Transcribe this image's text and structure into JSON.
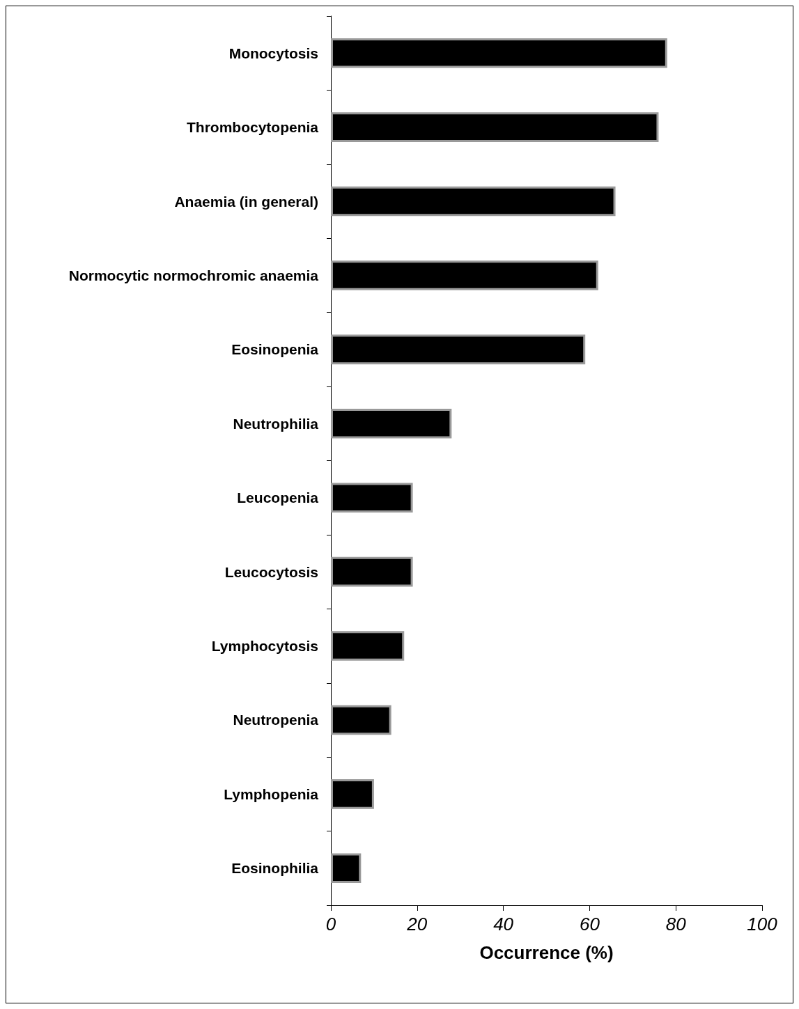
{
  "chart_data": {
    "type": "bar",
    "orientation": "horizontal",
    "xlabel": "Occurrence (%)",
    "categories": [
      "Monocytosis",
      "Thrombocytopenia",
      "Anaemia (in general)",
      "Normocytic normochromic anaemia",
      "Eosinopenia",
      "Neutrophilia",
      "Leucopenia",
      "Leucocytosis",
      "Lymphocytosis",
      "Neutropenia",
      "Lymphopenia",
      "Eosinophilia"
    ],
    "values": [
      78,
      76,
      66,
      62,
      59,
      28,
      19,
      19,
      17,
      14,
      10,
      7
    ],
    "color": "#000000",
    "xlim": [
      0,
      100
    ],
    "xticks": [
      0,
      20,
      40,
      60,
      80,
      100
    ],
    "grid": false
  }
}
